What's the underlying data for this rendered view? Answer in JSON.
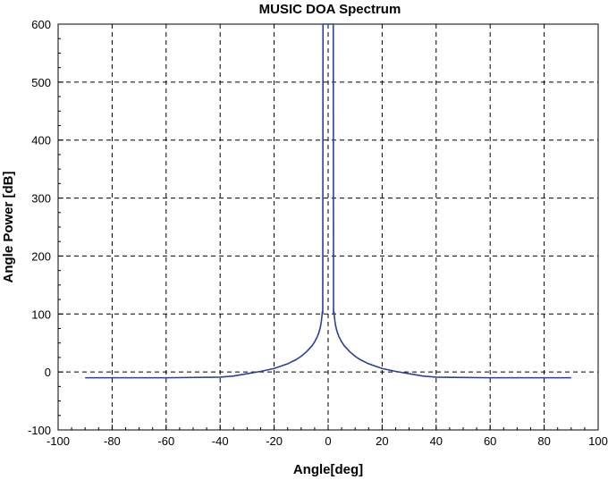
{
  "chart_data": {
    "type": "line",
    "title": "MUSIC DOA Spectrum",
    "xlabel": "Angle[deg]",
    "ylabel": "Angle Power [dB]",
    "xlim": [
      -100,
      100
    ],
    "ylim": [
      -100,
      600
    ],
    "xticks": [
      -100,
      -80,
      -60,
      -40,
      -20,
      0,
      20,
      40,
      60,
      80,
      100
    ],
    "yticks": [
      -100,
      0,
      100,
      200,
      300,
      400,
      500,
      600
    ],
    "grid": true,
    "legend": "none",
    "line_color": "#2b3f9e",
    "series": [
      {
        "x": [
          -90,
          -80,
          -60,
          -40,
          -35,
          -30,
          -25,
          -20,
          -15,
          -12,
          -10,
          -8,
          -6,
          -5,
          -4,
          -3.5,
          -3,
          -2.7,
          -2.5,
          -2.3,
          -2.1,
          -2,
          -1.9,
          -1.85,
          -1.8,
          -1.6,
          -1.4,
          -1.2,
          -1.0,
          -0.8,
          -0.6,
          -0.4,
          -0.2,
          0,
          0.2,
          0.4,
          0.6,
          0.8,
          1.0,
          1.2,
          1.4,
          1.6,
          1.8,
          1.85,
          1.9,
          2,
          2.1,
          2.3,
          2.5,
          2.7,
          3,
          3.5,
          4,
          5,
          6,
          8,
          10,
          12,
          15,
          20,
          25,
          30,
          35,
          40,
          60,
          80,
          90
        ],
        "y": [
          -10,
          -10,
          -10,
          -9,
          -7,
          -3,
          1,
          6,
          14,
          21,
          27,
          35,
          45,
          52,
          61,
          67,
          75,
          82,
          88,
          96,
          105,
          100,
          600,
          600,
          600,
          600,
          600,
          600,
          600,
          600,
          600,
          600,
          600,
          600,
          600,
          600,
          600,
          600,
          600,
          600,
          600,
          600,
          600,
          600,
          600,
          100,
          105,
          96,
          88,
          82,
          75,
          67,
          61,
          52,
          45,
          35,
          27,
          21,
          14,
          6,
          1,
          -3,
          -7,
          -9,
          -10,
          -10,
          -10
        ]
      }
    ]
  }
}
